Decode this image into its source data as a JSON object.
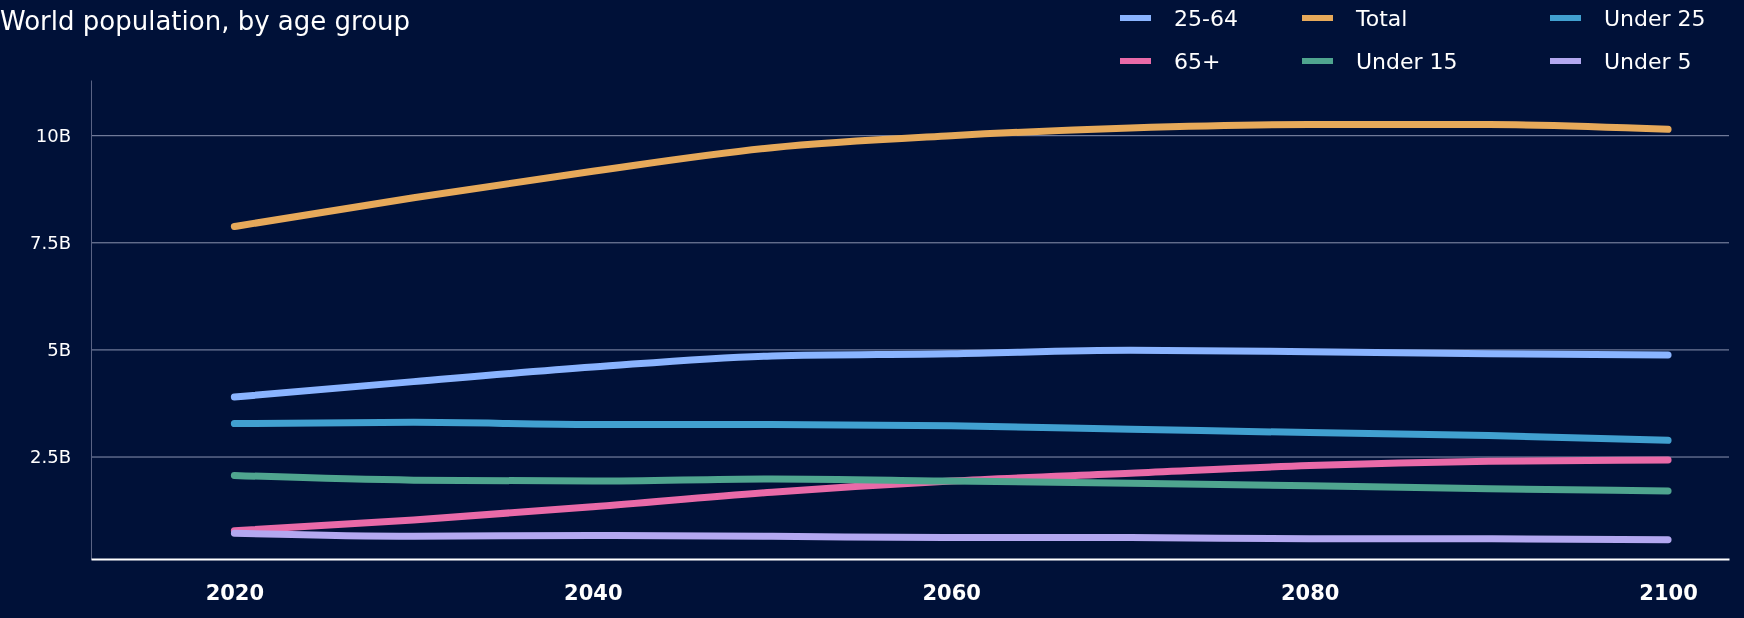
{
  "chart_data": {
    "type": "line",
    "title": "World population, by age group",
    "x": [
      2020,
      2030,
      2040,
      2050,
      2060,
      2070,
      2080,
      2090,
      2100
    ],
    "xlim": [
      2012,
      2103.4
    ],
    "xticks": [
      2020,
      2040,
      2060,
      2080,
      2100
    ],
    "ylim": [
      0.12,
      11.3
    ],
    "yticks": [
      {
        "value": 2.5,
        "label": "2.5B"
      },
      {
        "value": 5,
        "label": "5B"
      },
      {
        "value": 7.5,
        "label": "7.5B"
      },
      {
        "value": 10,
        "label": "10B"
      }
    ],
    "grid": "y",
    "legend": "top right",
    "marker": "none",
    "line_style": "solid",
    "series": [
      {
        "name": "25-64",
        "color": "#8ab4ff",
        "values": [
          3.9,
          4.26,
          4.6,
          4.86,
          4.91,
          4.99,
          4.96,
          4.91,
          4.88
        ]
      },
      {
        "name": "Total",
        "color": "#e6a95a",
        "values": [
          7.88,
          8.55,
          9.17,
          9.72,
          10.0,
          10.18,
          10.26,
          10.26,
          10.15
        ]
      },
      {
        "name": "Under 25",
        "color": "#41a0d0",
        "values": [
          3.28,
          3.31,
          3.26,
          3.26,
          3.23,
          3.15,
          3.07,
          3.0,
          2.89
        ]
      },
      {
        "name": "65+",
        "color": "#e96aa8",
        "values": [
          0.78,
          1.03,
          1.34,
          1.68,
          1.94,
          2.12,
          2.3,
          2.4,
          2.43
        ]
      },
      {
        "name": "Under 15",
        "color": "#4fa58f",
        "values": [
          2.07,
          1.96,
          1.94,
          1.99,
          1.94,
          1.89,
          1.83,
          1.76,
          1.71
        ]
      },
      {
        "name": "Under 5",
        "color": "#b3a8f0",
        "values": [
          0.72,
          0.65,
          0.67,
          0.65,
          0.62,
          0.62,
          0.59,
          0.59,
          0.57
        ]
      }
    ]
  }
}
